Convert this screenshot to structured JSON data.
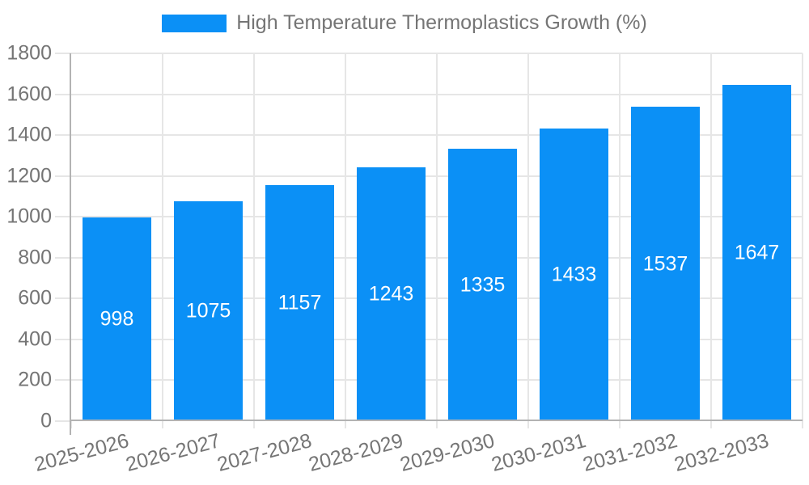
{
  "chart_data": {
    "type": "bar",
    "title": "High Temperature Thermoplastics Growth (%)",
    "legend": [
      "High Temperature Thermoplastics Growth (%)"
    ],
    "legend_position": "top",
    "categories": [
      "2025-2026",
      "2026-2027",
      "2027-2028",
      "2028-2029",
      "2029-2030",
      "2030-2031",
      "2031-2032",
      "2032-2033"
    ],
    "series": [
      {
        "name": "High Temperature Thermoplastics Growth (%)",
        "values": [
          998,
          1075,
          1157,
          1243,
          1335,
          1433,
          1537,
          1647
        ]
      }
    ],
    "bar_value_labels": [
      "998",
      "1075",
      "1157",
      "1243",
      "1335",
      "1433",
      "1537",
      "1647"
    ],
    "xlabel": "",
    "ylabel": "",
    "ylim": [
      0,
      1800
    ],
    "yticks": [
      0,
      200,
      400,
      600,
      800,
      1000,
      1200,
      1400,
      1600,
      1800
    ],
    "grid": true,
    "colors": {
      "bar": "#0b90f6",
      "bar_value_text": "#ffffff",
      "axis_text": "#757575",
      "grid_line": "#e6e6e6",
      "axis_line": "#b3b3b3",
      "background": "#ffffff"
    }
  }
}
